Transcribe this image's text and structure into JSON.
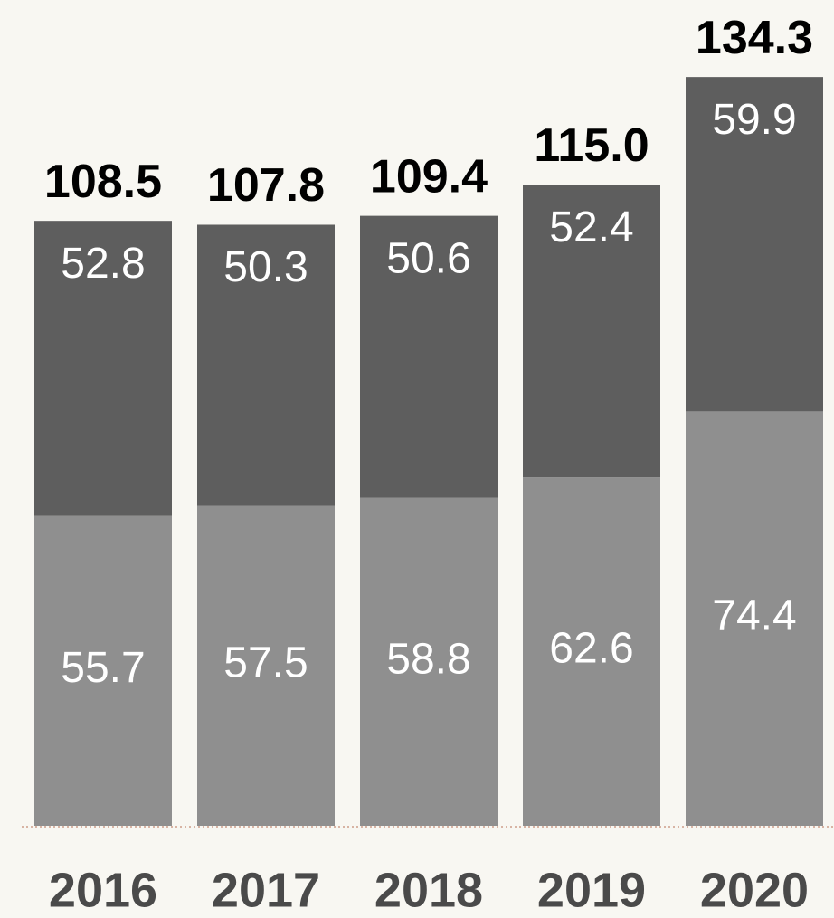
{
  "chart_data": {
    "type": "stacked_bar",
    "categories": [
      "2016",
      "2017",
      "2018",
      "2019",
      "2020"
    ],
    "series": [
      {
        "color": "#8f8f8f",
        "values": [
          55.7,
          57.5,
          58.8,
          62.6,
          74.4
        ]
      },
      {
        "color": "#5e5e5e",
        "values": [
          52.8,
          50.3,
          50.6,
          52.4,
          59.9
        ]
      }
    ],
    "value_labels": [
      [
        "55.7",
        "57.5",
        "58.8",
        "62.6",
        "74.4"
      ],
      [
        "52.8",
        "50.3",
        "50.6",
        "52.4",
        "59.9"
      ]
    ],
    "totals": [
      "108.5",
      "107.8",
      "109.4",
      "115.0",
      "134.3"
    ],
    "ylim": [
      0,
      140
    ]
  }
}
